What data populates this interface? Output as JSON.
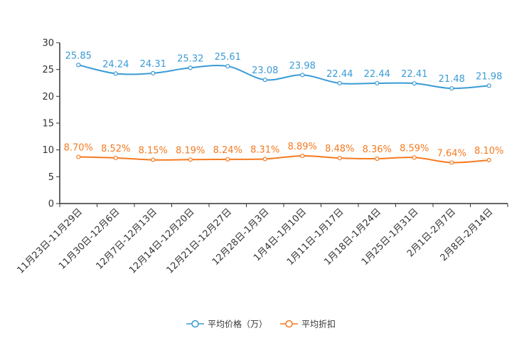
{
  "chart_data": {
    "type": "line",
    "title": "",
    "xlabel": "",
    "ylabel": "",
    "ylim": [
      0,
      30
    ],
    "yticks": [
      0,
      5,
      10,
      15,
      20,
      25,
      30
    ],
    "grid": false,
    "legend_position": "bottom",
    "categories": [
      "11月23日-11月29日",
      "11月30日-12月6日",
      "12月7日-12月13日",
      "12月14日-12月20日",
      "12月21日-12月27日",
      "12月28日-1月3日",
      "1月4日-1月10日",
      "1月11日-1月17日",
      "1月18日-1月24日",
      "1月25日-1月31日",
      "2月1日-2月7日",
      "2月8日-2月14日"
    ],
    "series": [
      {
        "name": "平均价格（万）",
        "color": "#3a9bd5",
        "values": [
          25.85,
          24.24,
          24.31,
          25.32,
          25.61,
          23.08,
          23.98,
          22.44,
          22.44,
          22.41,
          21.48,
          21.98
        ],
        "labels": [
          "25.85",
          "24.24",
          "24.31",
          "25.32",
          "25.61",
          "23.08",
          "23.98",
          "22.44",
          "22.44",
          "22.41",
          "21.48",
          "21.98"
        ]
      },
      {
        "name": "平均折扣",
        "color": "#f47a20",
        "values": [
          8.7,
          8.52,
          8.15,
          8.19,
          8.24,
          8.31,
          8.89,
          8.48,
          8.36,
          8.59,
          7.64,
          8.1
        ],
        "labels": [
          "8.70%",
          "8.52%",
          "8.15%",
          "8.19%",
          "8.24%",
          "8.31%",
          "8.89%",
          "8.48%",
          "8.36%",
          "8.59%",
          "7.64%",
          "8.10%"
        ]
      }
    ]
  }
}
